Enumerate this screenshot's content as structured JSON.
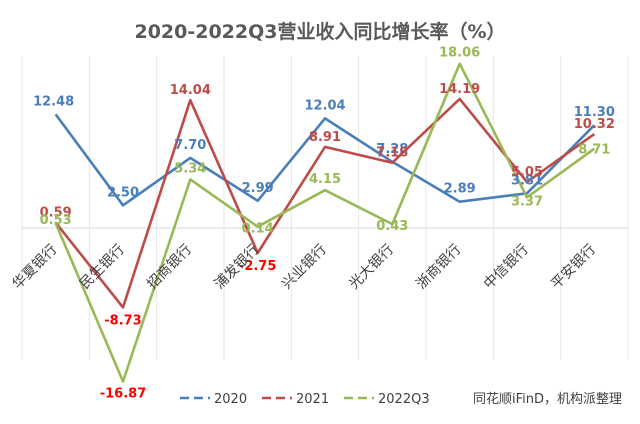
{
  "chart_data": {
    "type": "line",
    "title": "2020-2022Q3营业收入同比增长率（%）",
    "categories": [
      "华夏银行",
      "民生银行",
      "招商银行",
      "浦发银行",
      "兴业银行",
      "光大银行",
      "浙商银行",
      "中信银行",
      "平安银行"
    ],
    "series": [
      {
        "name": "2020",
        "color": "#4a7ebb",
        "values": [
          12.48,
          2.5,
          7.7,
          2.99,
          12.04,
          7.28,
          2.89,
          3.81,
          11.3
        ]
      },
      {
        "name": "2021",
        "color": "#be4b48",
        "values": [
          0.59,
          -8.73,
          14.04,
          -2.75,
          8.91,
          7.18,
          14.19,
          5.05,
          10.32
        ]
      },
      {
        "name": "2022Q3",
        "color": "#98b954",
        "values": [
          0.53,
          -16.87,
          5.34,
          0.14,
          4.15,
          0.43,
          18.06,
          3.37,
          8.71
        ]
      }
    ],
    "data_labels": [
      [
        "12.48",
        "2.50",
        "7.70",
        "2.99",
        "12.04",
        "7.28",
        "2.89",
        "3.81",
        "11.30"
      ],
      [
        "0.59",
        "-8.73",
        "14.04",
        "-2.75",
        "8.91",
        "7.18",
        "14.19",
        "5.05",
        "10.32"
      ],
      [
        "0.53",
        "-16.87",
        "5.34",
        "0.14",
        "4.15",
        "0.43",
        "18.06",
        "3.37",
        "8.71"
      ]
    ],
    "negative_label_color": "#ff0000",
    "ylim": [
      -20,
      20
    ],
    "grid": "vertical",
    "legend": "bottom"
  },
  "source": "同花顺iFinD，机构派整理"
}
